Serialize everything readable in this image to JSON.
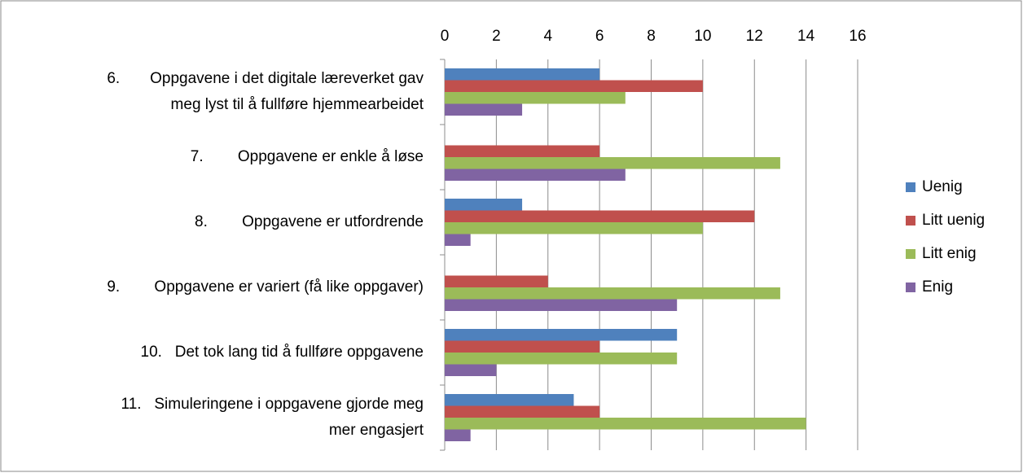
{
  "chart_data": {
    "type": "bar",
    "orientation": "horizontal",
    "categories": [
      [
        "6.       Oppgavene i det digitale læreverket gav",
        "meg lyst til å fullføre hjemmearbeidet"
      ],
      [
        "7.        Oppgavene er enkle å løse"
      ],
      [
        "8.        Oppgavene er utfordrende"
      ],
      [
        "9.        Oppgavene er variert (få like oppgaver)"
      ],
      [
        "10.   Det tok lang tid å fullføre oppgavene"
      ],
      [
        "11.   Simuleringene i oppgavene gjorde meg",
        "mer engasjert"
      ]
    ],
    "series": [
      {
        "name": "Uenig",
        "color": "#4f81bd",
        "values": [
          6,
          0,
          3,
          0,
          9,
          5
        ]
      },
      {
        "name": "Litt uenig",
        "color": "#c0504d",
        "values": [
          10,
          6,
          12,
          4,
          6,
          6
        ]
      },
      {
        "name": "Litt enig",
        "color": "#9bbb59",
        "values": [
          7,
          13,
          10,
          13,
          9,
          14
        ]
      },
      {
        "name": "Enig",
        "color": "#8064a2",
        "values": [
          3,
          7,
          1,
          9,
          2,
          1
        ]
      }
    ],
    "xlim": [
      0,
      16
    ],
    "xticks": [
      0,
      2,
      4,
      6,
      8,
      10,
      12,
      14,
      16
    ],
    "grid": true,
    "legend": "right"
  }
}
